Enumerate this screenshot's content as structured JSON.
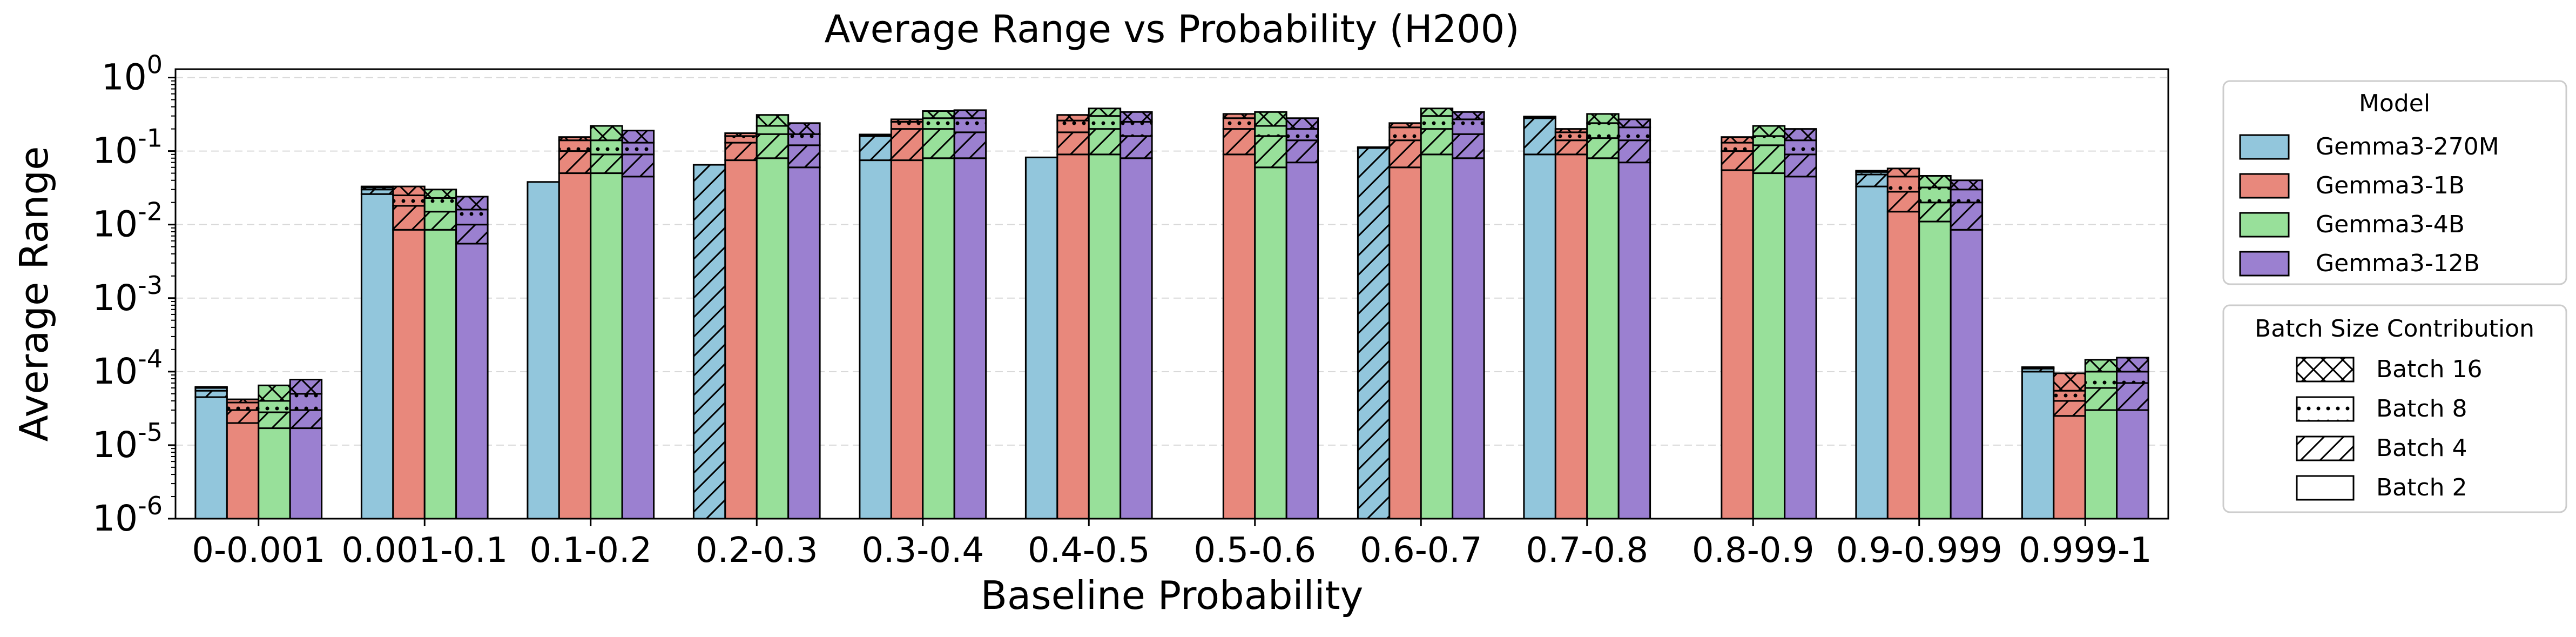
{
  "chart_data": {
    "type": "bar",
    "title": "Average Range vs Probability (H200)",
    "xlabel": "Baseline Probability",
    "ylabel": "Average Range",
    "yscale": "log",
    "ylim": [
      1e-06,
      1.3
    ],
    "y_tick_values": [
      1e-06,
      1e-05,
      0.0001,
      0.001,
      0.01,
      0.1,
      1
    ],
    "y_tick_exponents": [
      "-6",
      "-5",
      "-4",
      "-3",
      "-2",
      "-1",
      "0"
    ],
    "y_tick_base": "10",
    "grid": "horizontal dashed",
    "categories": [
      "0-0.001",
      "0.001-0.1",
      "0.1-0.2",
      "0.2-0.3",
      "0.3-0.4",
      "0.4-0.5",
      "0.5-0.6",
      "0.6-0.7",
      "0.7-0.8",
      "0.8-0.9",
      "0.9-0.999",
      "0.999-1"
    ],
    "stack_order": [
      "Batch 2",
      "Batch 4",
      "Batch 8",
      "Batch 16"
    ],
    "series": [
      {
        "name": "Gemma3-270M",
        "color": "#92c6dc",
        "cumulative_values": [
          [
            4.5e-05,
            5.5e-05,
            6e-05,
            6.2e-05
          ],
          [
            0.026,
            0.03,
            0.032,
            0.033
          ],
          [
            0.038,
            0.038,
            0.038,
            0.038
          ],
          [
            1e-06,
            0.065,
            0.065,
            0.065
          ],
          [
            0.075,
            0.16,
            0.165,
            0.168
          ],
          [
            0.082,
            0.082,
            0.082,
            0.082
          ],
          [
            1e-06,
            1e-06,
            1e-06,
            1e-06
          ],
          [
            1e-06,
            0.11,
            0.112,
            0.113
          ],
          [
            0.09,
            0.28,
            0.29,
            0.295
          ],
          [
            1e-06,
            1e-06,
            1e-06,
            1e-06
          ],
          [
            0.033,
            0.048,
            0.052,
            0.054
          ],
          [
            0.0001,
            0.00011,
            0.000113,
            0.000115
          ]
        ]
      },
      {
        "name": "Gemma3-1B",
        "color": "#e8887c",
        "cumulative_values": [
          [
            2e-05,
            3e-05,
            3.8e-05,
            4.2e-05
          ],
          [
            0.0085,
            0.018,
            0.025,
            0.033
          ],
          [
            0.05,
            0.1,
            0.14,
            0.155
          ],
          [
            0.075,
            0.13,
            0.16,
            0.175
          ],
          [
            0.075,
            0.2,
            0.25,
            0.27
          ],
          [
            0.09,
            0.18,
            0.26,
            0.31
          ],
          [
            0.09,
            0.2,
            0.28,
            0.32
          ],
          [
            0.06,
            0.14,
            0.21,
            0.24
          ],
          [
            0.09,
            0.14,
            0.18,
            0.2
          ],
          [
            0.055,
            0.1,
            0.13,
            0.155
          ],
          [
            0.015,
            0.028,
            0.045,
            0.058
          ],
          [
            2.5e-05,
            4e-05,
            5.5e-05,
            9.5e-05
          ]
        ]
      },
      {
        "name": "Gemma3-4B",
        "color": "#98e09a",
        "cumulative_values": [
          [
            1.7e-05,
            2.8e-05,
            4e-05,
            6.5e-05
          ],
          [
            0.0085,
            0.015,
            0.023,
            0.03
          ],
          [
            0.05,
            0.09,
            0.14,
            0.22
          ],
          [
            0.08,
            0.17,
            0.22,
            0.31
          ],
          [
            0.08,
            0.2,
            0.28,
            0.35
          ],
          [
            0.09,
            0.2,
            0.3,
            0.38
          ],
          [
            0.06,
            0.16,
            0.22,
            0.34
          ],
          [
            0.09,
            0.2,
            0.3,
            0.38
          ],
          [
            0.08,
            0.15,
            0.24,
            0.32
          ],
          [
            0.05,
            0.12,
            0.16,
            0.22
          ],
          [
            0.011,
            0.02,
            0.032,
            0.046
          ],
          [
            3e-05,
            6e-05,
            0.0001,
            0.000145
          ]
        ]
      },
      {
        "name": "Gemma3-12B",
        "color": "#9b80d0",
        "cumulative_values": [
          [
            1.7e-05,
            3e-05,
            5e-05,
            7.8e-05
          ],
          [
            0.0055,
            0.01,
            0.016,
            0.024
          ],
          [
            0.045,
            0.09,
            0.13,
            0.19
          ],
          [
            0.06,
            0.12,
            0.17,
            0.24
          ],
          [
            0.08,
            0.18,
            0.28,
            0.36
          ],
          [
            0.08,
            0.16,
            0.25,
            0.34
          ],
          [
            0.07,
            0.14,
            0.2,
            0.28
          ],
          [
            0.08,
            0.17,
            0.27,
            0.34
          ],
          [
            0.07,
            0.14,
            0.21,
            0.27
          ],
          [
            0.045,
            0.09,
            0.14,
            0.2
          ],
          [
            0.0085,
            0.02,
            0.03,
            0.04
          ],
          [
            3e-05,
            7e-05,
            0.0001,
            0.000155
          ]
        ]
      }
    ],
    "legends": [
      {
        "title": "Model",
        "placement": "right-top",
        "entries": [
          "Gemma3-270M",
          "Gemma3-1B",
          "Gemma3-4B",
          "Gemma3-12B"
        ]
      },
      {
        "title": "Batch Size Contribution",
        "placement": "right-bottom",
        "entries": [
          "Batch 16",
          "Batch 8",
          "Batch 4",
          "Batch 2"
        ],
        "hatches": [
          "crosshatch",
          "dots",
          "diagonal",
          "none"
        ]
      }
    ]
  }
}
